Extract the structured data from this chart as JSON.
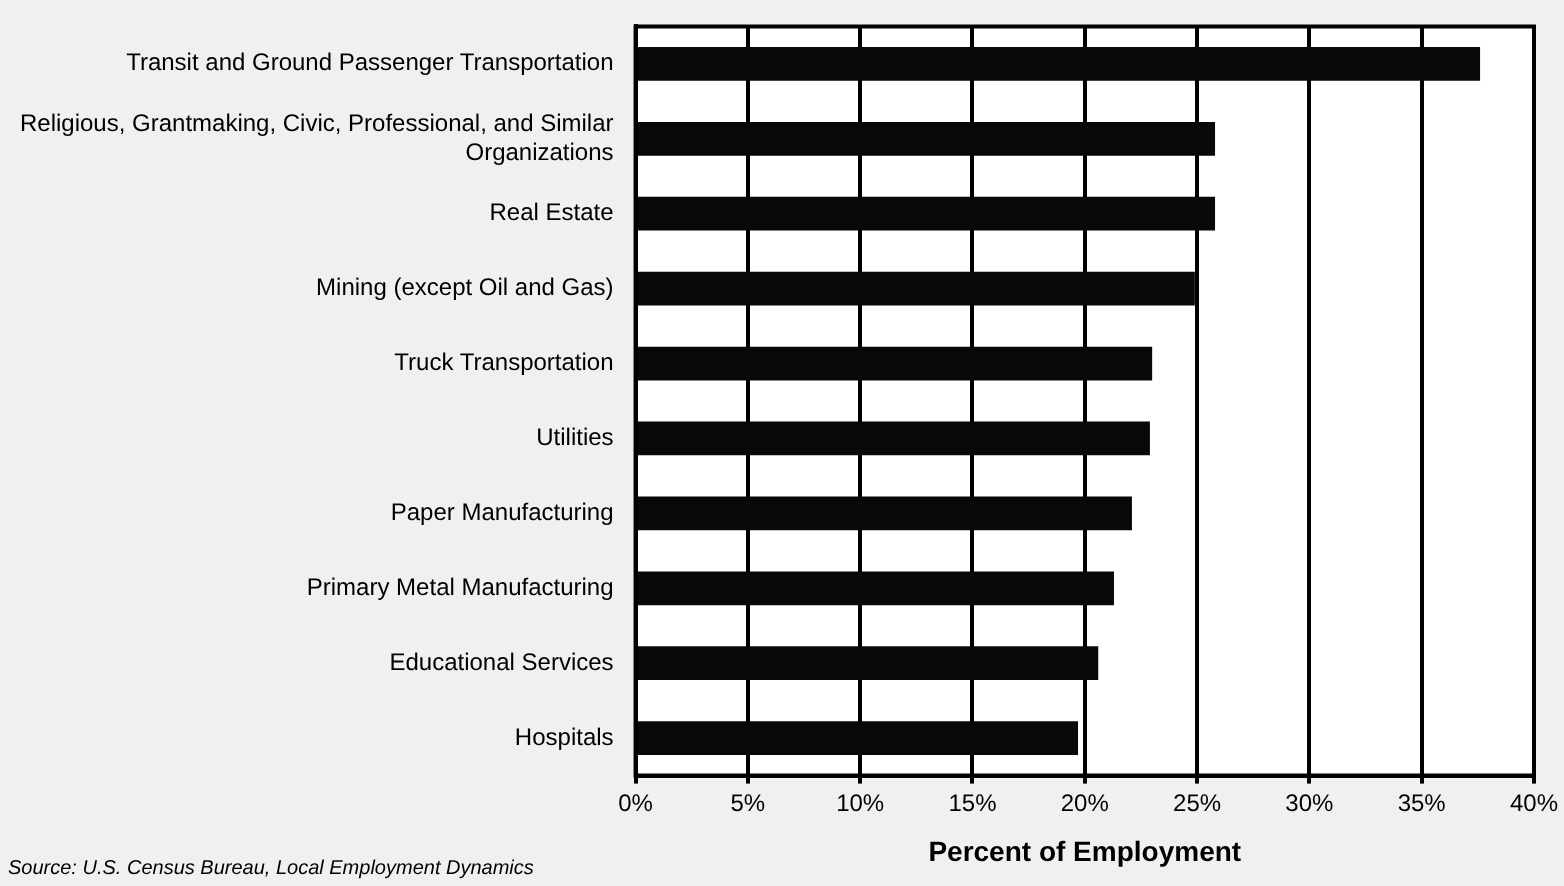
{
  "chart_data": {
    "type": "bar",
    "orientation": "horizontal",
    "xlabel": "Percent of Employment",
    "categories": [
      "Transit and Ground Passenger Transportation",
      "Religious, Grantmaking, Civic, Professional, and Similar Organizations",
      "Real Estate",
      "Mining (except Oil and Gas)",
      "Truck Transportation",
      "Utilities",
      "Paper Manufacturing",
      "Primary Metal Manufacturing",
      "Educational Services",
      "Hospitals"
    ],
    "values": [
      37.6,
      25.8,
      25.8,
      24.9,
      23.0,
      22.9,
      22.1,
      21.3,
      20.6,
      19.7
    ],
    "color": "#080808",
    "xlim": [
      0,
      40
    ],
    "xticks": [
      {
        "value": 0,
        "label": "0%"
      },
      {
        "value": 5,
        "label": "5%"
      },
      {
        "value": 10,
        "label": "10%"
      },
      {
        "value": 15,
        "label": "15%"
      },
      {
        "value": 20,
        "label": "20%"
      },
      {
        "value": 25,
        "label": "25%"
      },
      {
        "value": 30,
        "label": "30%"
      },
      {
        "value": 35,
        "label": "35%"
      },
      {
        "value": 40,
        "label": "40%"
      }
    ],
    "grid": "x",
    "legend": false,
    "annotations": [
      "Source: U.S. Census Bureau, Local Employment Dynamics"
    ]
  }
}
